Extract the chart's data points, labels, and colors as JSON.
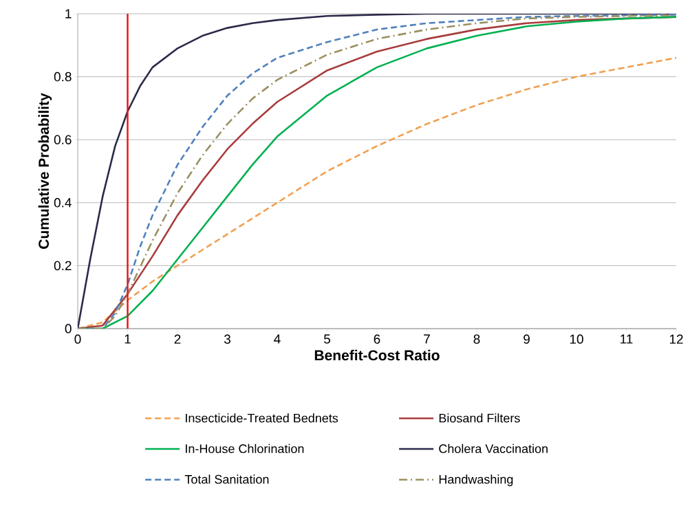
{
  "chart_data": {
    "type": "line",
    "xlabel": "Benefit-Cost Ratio",
    "ylabel": "Cumulative Probability",
    "xlim": [
      0,
      12
    ],
    "xticks": [
      0,
      1,
      2,
      3,
      4,
      5,
      6,
      7,
      8,
      9,
      10,
      11,
      12
    ],
    "ylim": [
      0,
      1
    ],
    "yticks": [
      0,
      0.2,
      0.4,
      0.6,
      0.8,
      1
    ],
    "grid": "y",
    "legend": "bottom",
    "marker": "none",
    "ref_lines": [
      {
        "axis": "x",
        "value": 1,
        "color": "#e8161b"
      }
    ],
    "series": [
      {
        "name": "Insecticide-Treated Bednets",
        "color": "#f0a050",
        "line_style": "dashed",
        "x": [
          0,
          0.5,
          1,
          1.5,
          2,
          2.5,
          3,
          4,
          5,
          6,
          7,
          8,
          9,
          10,
          11,
          12
        ],
        "values": [
          0,
          0.02,
          0.09,
          0.15,
          0.2,
          0.25,
          0.3,
          0.4,
          0.5,
          0.58,
          0.65,
          0.71,
          0.76,
          0.8,
          0.83,
          0.86
        ]
      },
      {
        "name": "Biosand Filters",
        "color": "#a83c3c",
        "line_style": "solid",
        "x": [
          0,
          0.5,
          1,
          1.5,
          2,
          2.5,
          3,
          3.5,
          4,
          5,
          6,
          7,
          8,
          9,
          10,
          11,
          12
        ],
        "values": [
          0,
          0.01,
          0.11,
          0.23,
          0.36,
          0.47,
          0.57,
          0.65,
          0.72,
          0.82,
          0.88,
          0.92,
          0.95,
          0.97,
          0.98,
          0.985,
          0.99
        ]
      },
      {
        "name": "In-House Chlorination",
        "color": "#00b050",
        "line_style": "solid",
        "x": [
          0,
          0.5,
          1,
          1.5,
          2,
          2.5,
          3,
          3.5,
          4,
          5,
          6,
          7,
          8,
          9,
          10,
          11,
          12
        ],
        "values": [
          0,
          0,
          0.04,
          0.12,
          0.22,
          0.32,
          0.42,
          0.52,
          0.61,
          0.74,
          0.83,
          0.89,
          0.93,
          0.96,
          0.975,
          0.985,
          0.99
        ]
      },
      {
        "name": "Cholera Vaccination",
        "color": "#2b2a4a",
        "line_style": "solid",
        "x": [
          0,
          0.25,
          0.5,
          0.75,
          1,
          1.25,
          1.5,
          2,
          2.5,
          3,
          3.5,
          4,
          5,
          6,
          7,
          8,
          9,
          10,
          11,
          12
        ],
        "values": [
          0,
          0.22,
          0.42,
          0.58,
          0.69,
          0.77,
          0.83,
          0.89,
          0.93,
          0.955,
          0.97,
          0.98,
          0.993,
          0.997,
          1,
          1,
          1,
          1,
          1,
          1
        ]
      },
      {
        "name": "Total Sanitation",
        "color": "#4f81bd",
        "line_style": "dashed",
        "x": [
          0,
          0.5,
          0.75,
          1,
          1.25,
          1.5,
          2,
          2.5,
          3,
          3.5,
          4,
          5,
          6,
          7,
          8,
          9,
          10,
          11,
          12
        ],
        "values": [
          0,
          0,
          0.05,
          0.14,
          0.26,
          0.36,
          0.52,
          0.64,
          0.74,
          0.81,
          0.86,
          0.91,
          0.95,
          0.97,
          0.98,
          0.99,
          0.993,
          0.995,
          0.997
        ]
      },
      {
        "name": "Handwashing",
        "color": "#9a9060",
        "line_style": "dashdot",
        "x": [
          0,
          0.5,
          0.75,
          1,
          1.5,
          2,
          2.5,
          3,
          3.5,
          4,
          5,
          6,
          7,
          8,
          9,
          10,
          11,
          12
        ],
        "values": [
          0,
          0,
          0.04,
          0.11,
          0.28,
          0.43,
          0.55,
          0.65,
          0.73,
          0.79,
          0.87,
          0.92,
          0.95,
          0.97,
          0.985,
          0.99,
          0.993,
          0.995
        ]
      }
    ]
  }
}
